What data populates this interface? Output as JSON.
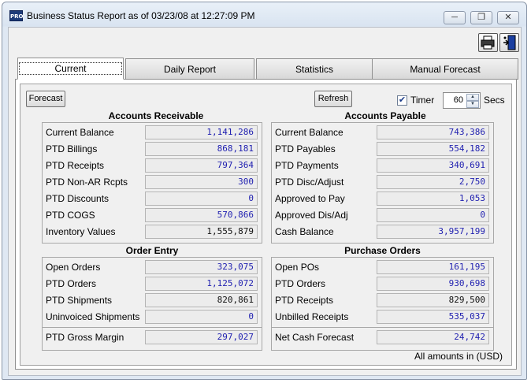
{
  "window": {
    "title": "Business Status Report as of 03/23/08 at 12:27:09 PM",
    "app_badge": "PRO"
  },
  "tabs": [
    "Current",
    "Daily Report",
    "Statistics",
    "Manual Forecast"
  ],
  "toolbar": {
    "forecast_label": "Forecast",
    "refresh_label": "Refresh",
    "timer_label": "Timer",
    "timer_checked": true,
    "timer_value": "60",
    "secs_label": "Secs"
  },
  "accounts_receivable": {
    "title": "Accounts Receivable",
    "rows": [
      {
        "label": "Current Balance",
        "value": "1,141,286"
      },
      {
        "label": "PTD Billings",
        "value": "868,181"
      },
      {
        "label": "PTD Receipts",
        "value": "797,364"
      },
      {
        "label": "PTD Non-AR Rcpts",
        "value": "300"
      },
      {
        "label": "PTD Discounts",
        "value": "0"
      },
      {
        "label": "PTD COGS",
        "value": "570,866"
      },
      {
        "label": "Inventory Values",
        "value": "1,555,879"
      }
    ]
  },
  "accounts_payable": {
    "title": "Accounts Payable",
    "rows": [
      {
        "label": "Current Balance",
        "value": "743,386"
      },
      {
        "label": "PTD Payables",
        "value": "554,182"
      },
      {
        "label": "PTD Payments",
        "value": "340,691"
      },
      {
        "label": "PTD Disc/Adjust",
        "value": "2,750"
      },
      {
        "label": "Approved to Pay",
        "value": "1,053"
      },
      {
        "label": "Approved Dis/Adj",
        "value": "0"
      },
      {
        "label": "Cash Balance",
        "value": "3,957,199"
      }
    ]
  },
  "order_entry": {
    "title": "Order Entry",
    "rows": [
      {
        "label": "Open Orders",
        "value": "323,075"
      },
      {
        "label": "PTD Orders",
        "value": "1,125,072"
      },
      {
        "label": "PTD Shipments",
        "value": "820,861"
      },
      {
        "label": "Uninvoiced Shipments",
        "value": "0"
      }
    ],
    "total": {
      "label": "PTD Gross Margin",
      "value": "297,027"
    }
  },
  "purchase_orders": {
    "title": "Purchase Orders",
    "rows": [
      {
        "label": "Open POs",
        "value": "161,195"
      },
      {
        "label": "PTD Orders",
        "value": "930,698"
      },
      {
        "label": "PTD Receipts",
        "value": "829,500"
      },
      {
        "label": "Unbilled Receipts",
        "value": "535,037"
      }
    ],
    "total": {
      "label": "Net Cash Forecast",
      "value": "24,742"
    }
  },
  "footer": "All amounts in (USD)",
  "colors": {
    "value_blue": "#1f1fb0",
    "value_black": "#111111"
  }
}
